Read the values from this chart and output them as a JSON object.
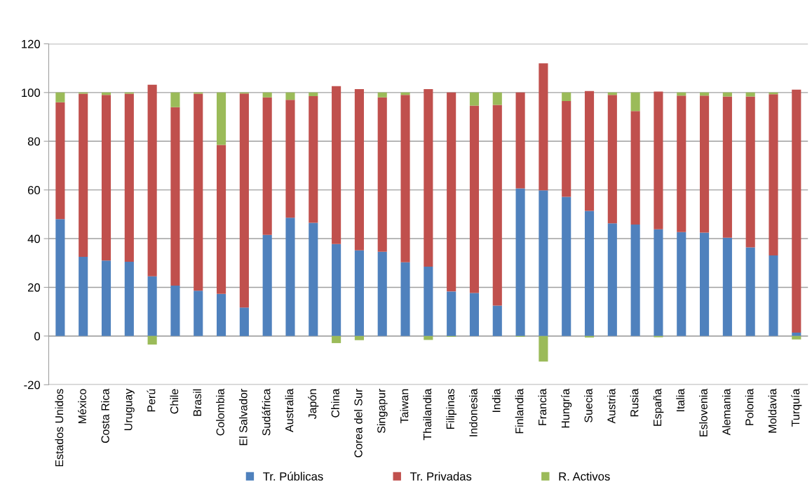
{
  "chart_data": {
    "type": "bar",
    "stacked": true,
    "categories": [
      "Estados Unidos",
      "México",
      "Costa Rica",
      "Uruguay",
      "Perú",
      "Chile",
      "Brasil",
      "Colombia",
      "El Salvador",
      "Sudáfrica",
      "Australia",
      "Japón",
      "China",
      "Corea del Sur",
      "Singapur",
      "Taiwan",
      "Thailandia",
      "Filipinas",
      "Indonesia",
      "India",
      "Finlandia",
      "Francia",
      "Hungría",
      "Suecia",
      "Austria",
      "Rusia",
      "España",
      "Italia",
      "Eslovenia",
      "Alemania",
      "Polonia",
      "Moldavia",
      "Turquía"
    ],
    "series": [
      {
        "name": "Tr. Públicas",
        "color": "#4f81bd",
        "values": [
          48,
          32.5,
          31,
          30.5,
          24.5,
          20.7,
          18.6,
          17.3,
          11.7,
          41.5,
          48.6,
          46.5,
          37.8,
          35.2,
          34.6,
          30.3,
          28.5,
          18.3,
          17.7,
          12.5,
          60.6,
          59.8,
          57.2,
          51.4,
          46.3,
          45.8,
          43.8,
          42.7,
          42.5,
          40.4,
          36.4,
          33.1,
          1.4
        ]
      },
      {
        "name": "Tr. Privadas",
        "color": "#c0504d",
        "values": [
          48,
          67,
          68,
          69,
          78.7,
          73.3,
          80.9,
          61.2,
          87.9,
          56.5,
          48.4,
          52,
          64.8,
          66.2,
          63.4,
          68.7,
          72.9,
          81.7,
          76.9,
          82.4,
          39.4,
          52.2,
          39.3,
          49.2,
          52.7,
          46.6,
          56.6,
          56,
          56.2,
          58,
          62,
          66.2,
          99.8
        ]
      },
      {
        "name": "R. Activos",
        "color": "#9bbb59",
        "values": [
          4,
          0.5,
          1,
          0.5,
          -3.5,
          6,
          0.5,
          21.5,
          0.4,
          2,
          3,
          1.5,
          -2.9,
          -1.7,
          2,
          1,
          -1.6,
          -0.3,
          5.4,
          5.1,
          -0.3,
          -10.5,
          3.5,
          -0.6,
          1,
          7.6,
          -0.5,
          1.3,
          1.3,
          1.6,
          1.6,
          0.7,
          -1.4
        ]
      }
    ],
    "ylim": [
      -20,
      120
    ],
    "yticks": [
      -20,
      0,
      20,
      40,
      60,
      80,
      100,
      120
    ],
    "grid": "y",
    "legend": "bottom"
  }
}
